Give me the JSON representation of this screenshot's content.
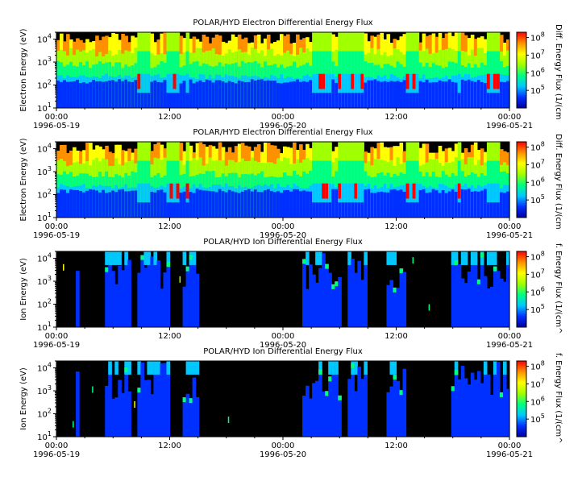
{
  "chart_data": [
    {
      "type": "heatmap",
      "title": "POLAR/HYD  Electron Differential Energy Flux",
      "ylabel": "Electron Energy (eV)",
      "colorbar_label": "Diff. Energy Flux (1/(cm",
      "x_ticks": [
        {
          "t": 0,
          "label": "00:00",
          "date": "1996-05-19"
        },
        {
          "t": 12,
          "label": "12:00",
          "date": ""
        },
        {
          "t": 24,
          "label": "00:00",
          "date": "1996-05-20"
        },
        {
          "t": 36,
          "label": "12:00",
          "date": ""
        },
        {
          "t": 48,
          "label": "00:00",
          "date": "1996-05-21"
        }
      ],
      "xlim": [
        "1996-05-19 00:00",
        "1996-05-21 00:00"
      ],
      "y_scale": "log",
      "ylim": [
        10,
        20000
      ],
      "y_ticks": [
        {
          "base": "10",
          "exp": "1"
        },
        {
          "base": "10",
          "exp": "2"
        },
        {
          "base": "10",
          "exp": "3"
        },
        {
          "base": "10",
          "exp": "4"
        }
      ],
      "colorbar_ticks": [
        {
          "base": "10",
          "exp": "5"
        },
        {
          "base": "10",
          "exp": "6"
        },
        {
          "base": "10",
          "exp": "7"
        },
        {
          "base": "10",
          "exp": "8"
        }
      ],
      "clim": [
        10000,
        200000000
      ],
      "colormap": [
        "#0000a0",
        "#0030ff",
        "#00c8ff",
        "#00ff80",
        "#a0ff00",
        "#ffff00",
        "#ff9000",
        "#ff0000"
      ],
      "events": [
        [
          8.5,
          10
        ],
        [
          11.5,
          13
        ],
        [
          13.8,
          14
        ],
        [
          27,
          29
        ],
        [
          30,
          32.5
        ],
        [
          37,
          38.5
        ],
        [
          42.5,
          43
        ],
        [
          45.5,
          47
        ]
      ]
    },
    {
      "type": "heatmap",
      "title": "POLAR/HYD  Electron Differential Energy Flux",
      "ylabel": "Electron Energy (eV)",
      "colorbar_label": "Diff. Energy Flux (1/(cm",
      "x_ticks": [
        {
          "t": 0,
          "label": "00:00",
          "date": "1996-05-19"
        },
        {
          "t": 12,
          "label": "12:00",
          "date": ""
        },
        {
          "t": 24,
          "label": "00:00",
          "date": "1996-05-20"
        },
        {
          "t": 36,
          "label": "12:00",
          "date": ""
        },
        {
          "t": 48,
          "label": "00:00",
          "date": "1996-05-21"
        }
      ],
      "xlim": [
        "1996-05-19 00:00",
        "1996-05-21 00:00"
      ],
      "y_scale": "log",
      "ylim": [
        10,
        20000
      ],
      "y_ticks": [
        {
          "base": "10",
          "exp": "1"
        },
        {
          "base": "10",
          "exp": "2"
        },
        {
          "base": "10",
          "exp": "3"
        },
        {
          "base": "10",
          "exp": "4"
        }
      ],
      "colorbar_ticks": [
        {
          "base": "10",
          "exp": "5"
        },
        {
          "base": "10",
          "exp": "6"
        },
        {
          "base": "10",
          "exp": "7"
        },
        {
          "base": "10",
          "exp": "8"
        }
      ],
      "clim": [
        10000,
        200000000
      ],
      "colormap": [
        "#0000a0",
        "#0030ff",
        "#00c8ff",
        "#00ff80",
        "#a0ff00",
        "#ffff00",
        "#ff9000",
        "#ff0000"
      ],
      "events": [
        [
          8.5,
          10
        ],
        [
          11.5,
          13
        ],
        [
          13.8,
          14
        ],
        [
          27,
          29
        ],
        [
          30,
          32.5
        ],
        [
          37,
          38.5
        ],
        [
          42.5,
          43
        ],
        [
          45.5,
          47
        ]
      ]
    },
    {
      "type": "heatmap",
      "title": "POLAR/HYD  Ion Differential Energy Flux",
      "ylabel": "Ion Energy (eV)",
      "colorbar_label": "f. Energy Flux (1/(cm^",
      "x_ticks": [
        {
          "t": 0,
          "label": "00:00",
          "date": "1996-05-19"
        },
        {
          "t": 12,
          "label": "12:00",
          "date": ""
        },
        {
          "t": 24,
          "label": "00:00",
          "date": "1996-05-20"
        },
        {
          "t": 36,
          "label": "12:00",
          "date": ""
        },
        {
          "t": 48,
          "label": "00:00",
          "date": "1996-05-21"
        }
      ],
      "xlim": [
        "1996-05-19 00:00",
        "1996-05-21 00:00"
      ],
      "y_scale": "log",
      "ylim": [
        10,
        20000
      ],
      "y_ticks": [
        {
          "base": "10",
          "exp": "1"
        },
        {
          "base": "10",
          "exp": "2"
        },
        {
          "base": "10",
          "exp": "3"
        },
        {
          "base": "10",
          "exp": "4"
        }
      ],
      "colorbar_ticks": [
        {
          "base": "10",
          "exp": "5"
        },
        {
          "base": "10",
          "exp": "6"
        },
        {
          "base": "10",
          "exp": "7"
        },
        {
          "base": "10",
          "exp": "8"
        }
      ],
      "clim": [
        10000,
        200000000
      ],
      "colormap": [
        "#0000a0",
        "#0030ff",
        "#00c8ff",
        "#00ff80",
        "#a0ff00",
        "#ffff00",
        "#ff9000",
        "#ff0000"
      ],
      "events": [
        [
          2,
          2.5
        ],
        [
          5,
          8
        ],
        [
          8.5,
          12
        ],
        [
          13.5,
          15
        ],
        [
          26,
          30
        ],
        [
          31,
          33
        ],
        [
          35,
          37
        ],
        [
          42,
          48
        ]
      ]
    },
    {
      "type": "heatmap",
      "title": "POLAR/HYD  Ion Differential Energy Flux",
      "ylabel": "Ion Energy (eV)",
      "colorbar_label": "f. Energy Flux (1/(cm^",
      "x_ticks": [
        {
          "t": 0,
          "label": "00:00",
          "date": "1996-05-19"
        },
        {
          "t": 12,
          "label": "12:00",
          "date": ""
        },
        {
          "t": 24,
          "label": "00:00",
          "date": "1996-05-20"
        },
        {
          "t": 36,
          "label": "12:00",
          "date": ""
        },
        {
          "t": 48,
          "label": "00:00",
          "date": "1996-05-21"
        }
      ],
      "xlim": [
        "1996-05-19 00:00",
        "1996-05-21 00:00"
      ],
      "y_scale": "log",
      "ylim": [
        10,
        20000
      ],
      "y_ticks": [
        {
          "base": "10",
          "exp": "1"
        },
        {
          "base": "10",
          "exp": "2"
        },
        {
          "base": "10",
          "exp": "3"
        },
        {
          "base": "10",
          "exp": "4"
        }
      ],
      "colorbar_ticks": [
        {
          "base": "10",
          "exp": "5"
        },
        {
          "base": "10",
          "exp": "6"
        },
        {
          "base": "10",
          "exp": "7"
        },
        {
          "base": "10",
          "exp": "8"
        }
      ],
      "clim": [
        10000,
        200000000
      ],
      "colormap": [
        "#0000a0",
        "#0030ff",
        "#00c8ff",
        "#00ff80",
        "#a0ff00",
        "#ffff00",
        "#ff9000",
        "#ff0000"
      ],
      "events": [
        [
          2,
          2.5
        ],
        [
          5,
          8
        ],
        [
          8.5,
          12
        ],
        [
          13.5,
          15
        ],
        [
          26,
          30
        ],
        [
          31,
          33
        ],
        [
          35,
          37
        ],
        [
          42,
          48
        ]
      ]
    }
  ]
}
